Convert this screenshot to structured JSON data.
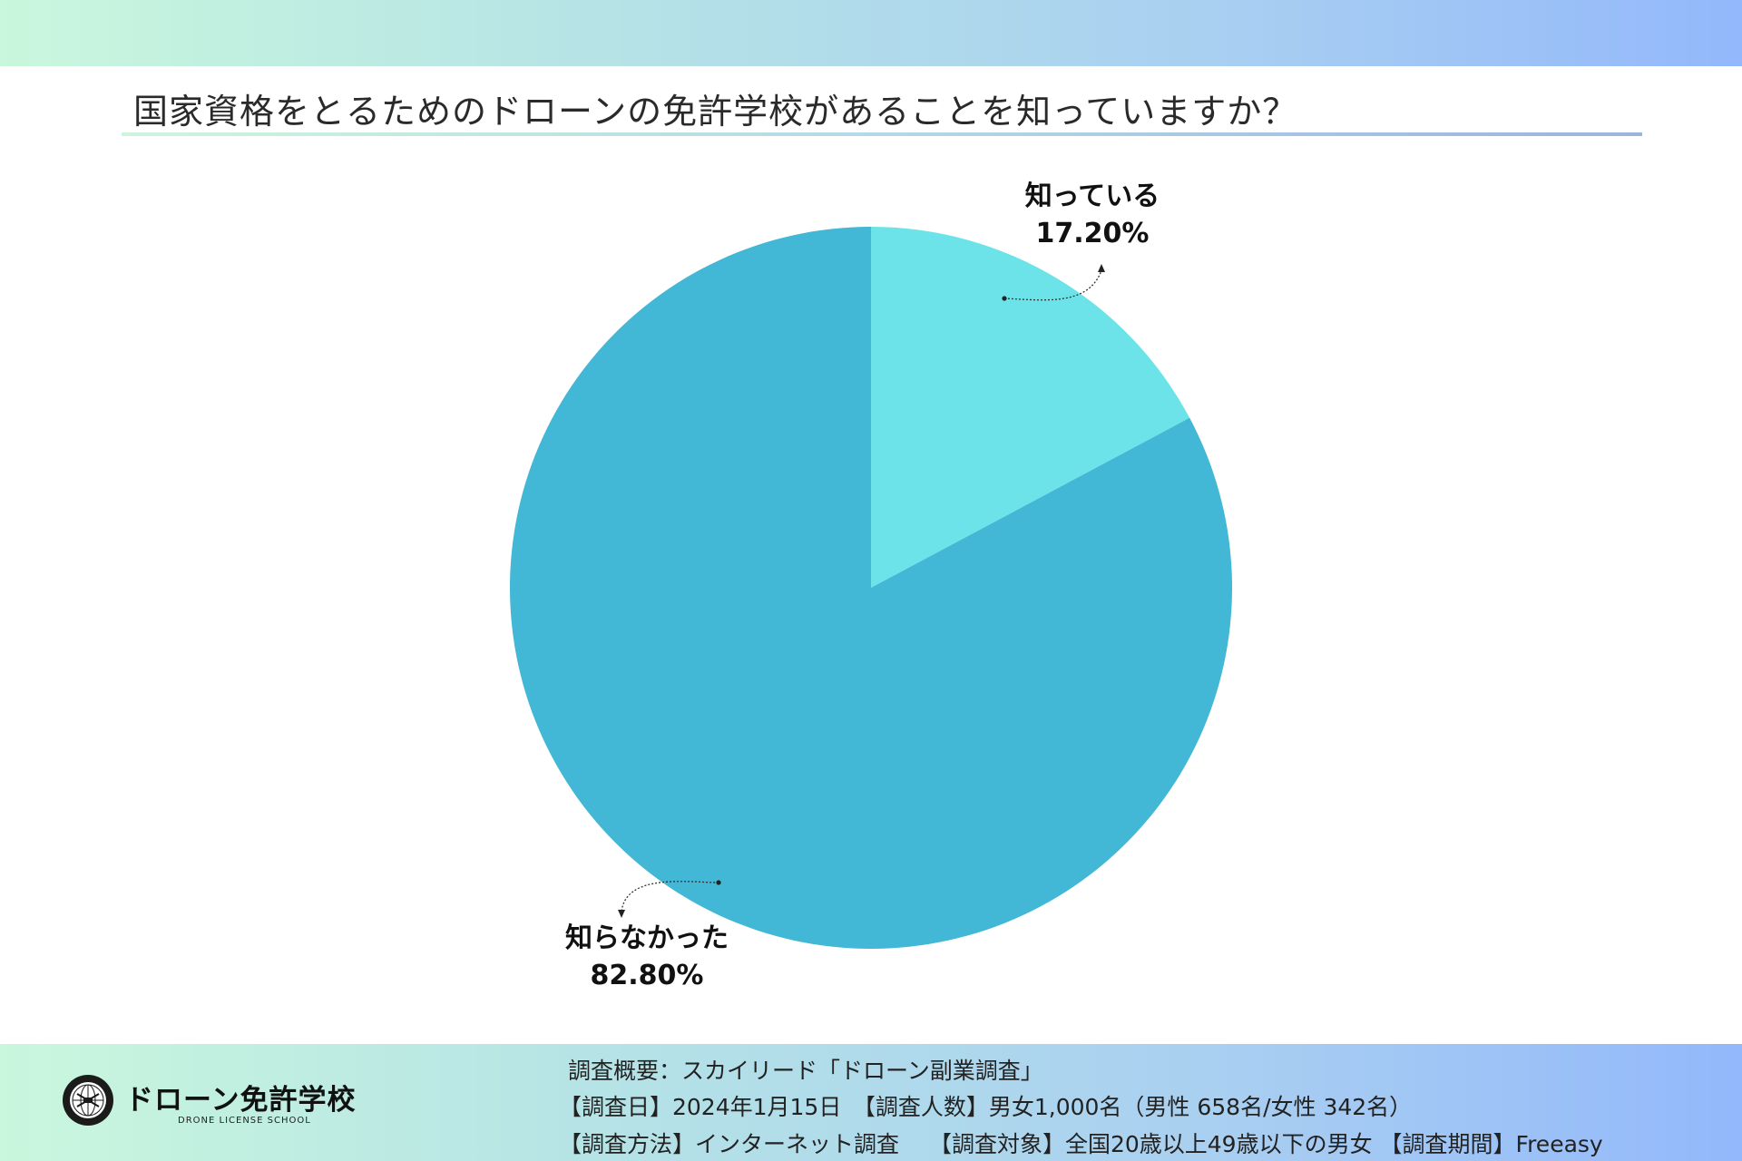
{
  "title": "国家資格をとるためのドローンの免許学校があることを知っていますか？",
  "chart_data": {
    "type": "pie",
    "categories": [
      "知っている",
      "知らなかった"
    ],
    "values": [
      17.2,
      82.8
    ],
    "value_labels": [
      "17.20%",
      "82.80%"
    ],
    "colors": [
      "#6ce3e8",
      "#42b7d6"
    ],
    "start": "12 o'clock",
    "direction": "clockwise"
  },
  "footer": {
    "logo_name": "ドローン免許学校",
    "logo_sub": "DRONE LICENSE SCHOOL",
    "note_line1": "調査概要：スカイリード「ドローン副業調査」",
    "note_line2": "【調査日】2024年1月15日　【調査人数】男女1,000名（男性 658名/女性 342名）",
    "note_line3": "【調査方法】インターネット調査　 【調査対象】全国20歳以上49歳以下の男女 【調査期間】Freeasy"
  }
}
